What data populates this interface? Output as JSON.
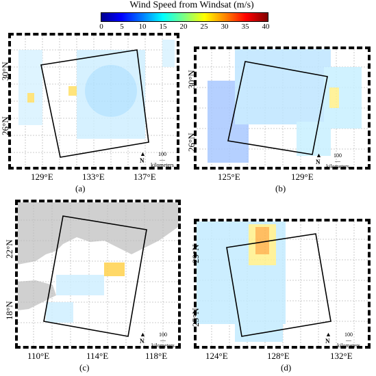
{
  "colorbar": {
    "title": "Wind Speed from Windsat (m/s)",
    "ticks": [
      "0",
      "5",
      "10",
      "15",
      "20",
      "25",
      "30",
      "35",
      "40"
    ]
  },
  "panels": [
    {
      "caption": "(a)",
      "lon": [
        "129°E",
        "133°E",
        "137°E"
      ],
      "lat": [
        "30°N",
        "26°N"
      ],
      "scale_num": "100",
      "scale_unit": "kilometers",
      "north": "N"
    },
    {
      "caption": "(b)",
      "lon": [
        "125°E",
        "129°E"
      ],
      "lat": [
        "30°N",
        "26°N"
      ],
      "scale_num": "100",
      "scale_unit": "kilometers",
      "north": "N"
    },
    {
      "caption": "(c)",
      "lon": [
        "110°E",
        "114°E",
        "118°E"
      ],
      "lat": [
        "22°N",
        "18°N"
      ],
      "scale_num": "100",
      "scale_unit": "kilometers",
      "north": "N"
    },
    {
      "caption": "(d)",
      "lon": [
        "124°E",
        "128°E",
        "132°E"
      ],
      "lat": [
        "29°N",
        "25°N"
      ],
      "scale_num": "100",
      "scale_unit": "kilometers",
      "north": "N"
    }
  ]
}
